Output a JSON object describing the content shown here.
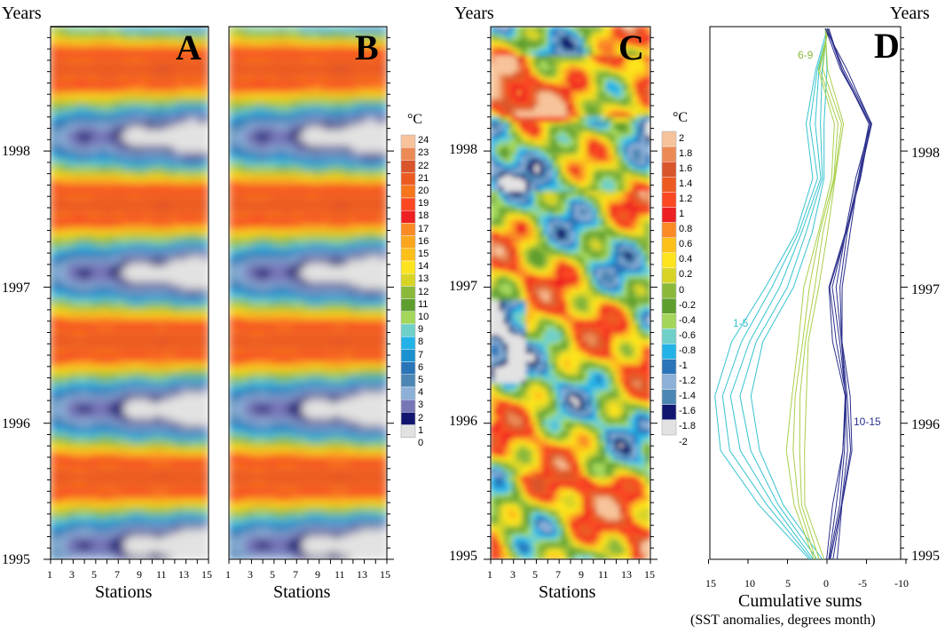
{
  "panels": {
    "A": {
      "letter": "A",
      "years_label": "Years",
      "xlabel": "Stations"
    },
    "B": {
      "letter": "B",
      "xlabel": "Stations"
    },
    "C": {
      "letter": "C",
      "years_label": "Years",
      "xlabel": "Stations"
    },
    "D": {
      "letter": "D",
      "years_label": "Years",
      "xlabel": "Cumulative sums",
      "xlabel_sub": "(SST anomalies, degrees month)"
    }
  },
  "year_ticks": [
    "1995",
    "1996",
    "1997",
    "1998"
  ],
  "station_ticks": [
    "1",
    "3",
    "5",
    "7",
    "9",
    "11",
    "13",
    "15"
  ],
  "colorbar_temp": {
    "unit": "°C",
    "labels": [
      "24",
      "23",
      "22",
      "21",
      "20",
      "19",
      "18",
      "17",
      "16",
      "15",
      "14",
      "13",
      "12",
      "11",
      "10",
      "9",
      "8",
      "7",
      "6",
      "5",
      "4",
      "3",
      "2",
      "1",
      "0"
    ],
    "colors": [
      "#f7c39a",
      "#ec8a55",
      "#d9552c",
      "#ec5a22",
      "#f7761c",
      "#fb4722",
      "#ee1f22",
      "#fb8a25",
      "#fba61d",
      "#fdbf1a",
      "#fde41f",
      "#d8d426",
      "#8ab93a",
      "#5e9e2f",
      "#a3d65a",
      "#6fd0c9",
      "#23b2e8",
      "#1a92cf",
      "#2a74b8",
      "#4c86b4",
      "#8cb0d7",
      "#7777b8",
      "#10166f",
      "#e2e2e2"
    ]
  },
  "colorbar_anom": {
    "unit": "°C",
    "labels": [
      "2",
      "1.8",
      "1.6",
      "1.4",
      "1.2",
      "1",
      "0.8",
      "0.6",
      "0.4",
      "0.2",
      "0",
      "-0.2",
      "-0.4",
      "-0.6",
      "-0.8",
      "-1",
      "-1.2",
      "-1.4",
      "-1.6",
      "-1.8",
      "-2"
    ],
    "colors": [
      "#f7c39a",
      "#ec8a55",
      "#d9552c",
      "#ec5a22",
      "#fb4722",
      "#ee1f22",
      "#fb8a25",
      "#fdbf1a",
      "#fde41f",
      "#d8d426",
      "#8ab93a",
      "#5e9e2f",
      "#a3d65a",
      "#6fd0c9",
      "#23b2e8",
      "#2a74b8",
      "#8cb0d7",
      "#4c86b4",
      "#10166f",
      "#e2e2e2"
    ]
  },
  "d_xticks": [
    "15",
    "10",
    "5",
    "0",
    "-5",
    "-10"
  ],
  "d_annotations": {
    "a1": "6-9",
    "a2": "1-5",
    "a3": "10-15"
  },
  "chart_data": [
    {
      "type": "heatmap",
      "title": "A",
      "xlabel": "Stations",
      "ylabel": "Years",
      "x_range": [
        1,
        15
      ],
      "y_range": [
        1995,
        1998.9
      ],
      "unit": "°C",
      "value_range": [
        0,
        24
      ],
      "description_values": {
        "summer_max": 21,
        "winter_min_west": 8,
        "winter_min_east": 1
      }
    },
    {
      "type": "heatmap",
      "title": "B",
      "xlabel": "Stations",
      "ylabel": "Years",
      "x_range": [
        1,
        15
      ],
      "y_range": [
        1995,
        1998.9
      ],
      "unit": "°C",
      "value_range": [
        0,
        24
      ],
      "description_values": {
        "summer_max": 21,
        "winter_min_west": 8,
        "winter_min_east": 1
      }
    },
    {
      "type": "heatmap",
      "title": "C",
      "xlabel": "Stations",
      "ylabel": "Years",
      "x_range": [
        1,
        15
      ],
      "y_range": [
        1995,
        1998.9
      ],
      "unit": "°C",
      "value_range": [
        -2,
        2
      ]
    },
    {
      "type": "line",
      "title": "D",
      "xlabel": "Cumulative sums",
      "xlabel_sub": "(SST anomalies, degrees month)",
      "ylabel": "Years",
      "x_range": [
        15,
        -10
      ],
      "y_range": [
        1995,
        1998.9
      ],
      "series": [
        {
          "name": "1-5",
          "years": [
            1995.0,
            1995.4,
            1995.8,
            1996.2,
            1996.6,
            1997.0,
            1997.4,
            1997.8,
            1998.2,
            1998.6,
            1998.9
          ],
          "values": [
            1.5,
            7.0,
            11.0,
            12.0,
            10.0,
            6.0,
            3.0,
            1.0,
            1.5,
            0.8,
            0.0
          ]
        },
        {
          "name": "6-9",
          "years": [
            1995.0,
            1995.4,
            1995.8,
            1996.2,
            1996.6,
            1997.0,
            1997.4,
            1997.8,
            1998.2,
            1998.6,
            1998.9
          ],
          "values": [
            1.0,
            3.5,
            4.0,
            3.5,
            3.0,
            2.0,
            0.5,
            -0.8,
            -1.5,
            0.5,
            0.0
          ]
        },
        {
          "name": "10-15",
          "years": [
            1995.0,
            1995.4,
            1995.8,
            1996.2,
            1996.6,
            1997.0,
            1997.4,
            1997.8,
            1998.2,
            1998.6,
            1998.9
          ],
          "values": [
            -0.5,
            -1.5,
            -2.5,
            -2.5,
            -1.5,
            -1.0,
            -2.5,
            -4.0,
            -5.5,
            -2.0,
            0.0
          ]
        }
      ]
    }
  ]
}
